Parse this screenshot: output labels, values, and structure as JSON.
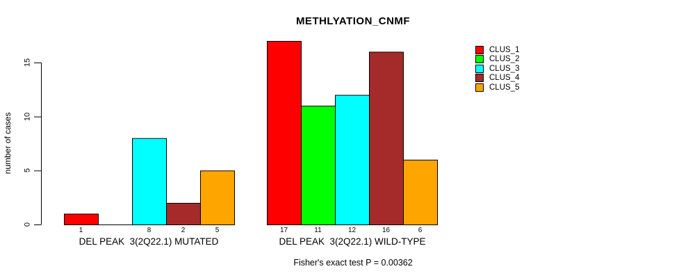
{
  "chart_data": {
    "type": "bar",
    "title": "METHLYATION_CNMF",
    "ylabel": "number of cases",
    "xlabel": "",
    "categories": [
      "DEL PEAK  3(2Q22.1) MUTATED",
      "DEL PEAK  3(2Q22.1) WILD-TYPE"
    ],
    "series": [
      {
        "name": "CLUS_1",
        "color": "#FF0000",
        "values": [
          1,
          17
        ]
      },
      {
        "name": "CLUS_2",
        "color": "#00FF00",
        "values": [
          0,
          11
        ]
      },
      {
        "name": "CLUS_3",
        "color": "#00FFFF",
        "values": [
          8,
          12
        ]
      },
      {
        "name": "CLUS_4",
        "color": "#A52A2A",
        "values": [
          2,
          16
        ]
      },
      {
        "name": "CLUS_5",
        "color": "#FFA500",
        "values": [
          5,
          6
        ]
      }
    ],
    "bar_value_labels": [
      [
        "1",
        "",
        "8",
        "2",
        "5"
      ],
      [
        "17",
        "11",
        "12",
        "16",
        "6"
      ]
    ],
    "yticks": [
      0,
      5,
      10,
      15
    ],
    "ylim": [
      0,
      17
    ],
    "grid": false,
    "legend_position": "right",
    "legend_labels": [
      "CLUS_1",
      "CLUS_2",
      "CLUS_3",
      "CLUS_4",
      "CLUS_5"
    ],
    "annotation": "Fisher's exact test P = 0.00362",
    "axis_color": "#000000",
    "background_color": "#FFFFFF"
  }
}
